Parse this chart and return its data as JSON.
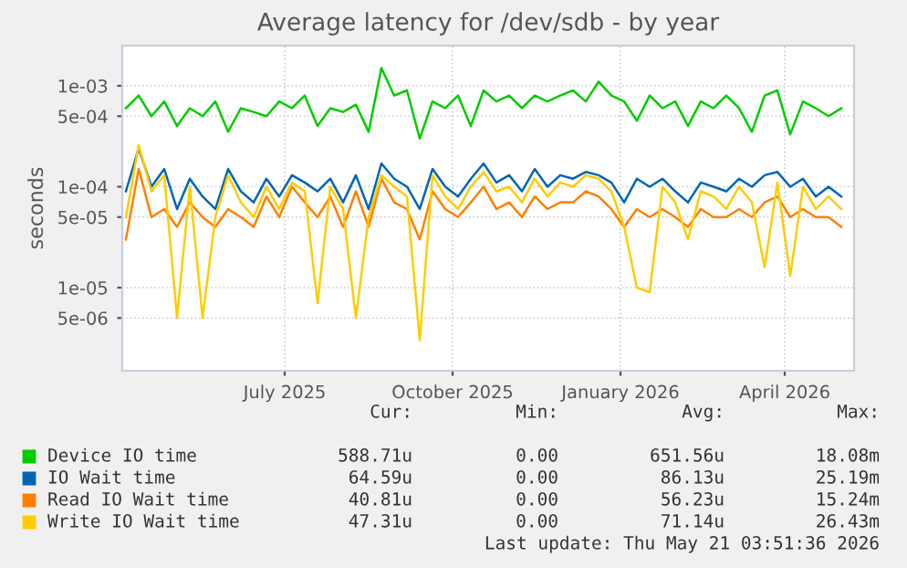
{
  "chart_data": {
    "type": "line",
    "title": "Average latency for /dev/sdb - by year",
    "ylabel": "seconds",
    "x": [
      "2025-04-20",
      "2025-04-27",
      "2025-05-04",
      "2025-05-11",
      "2025-05-18",
      "2025-05-25",
      "2025-06-01",
      "2025-06-08",
      "2025-06-15",
      "2025-06-22",
      "2025-06-29",
      "2025-07-06",
      "2025-07-13",
      "2025-07-20",
      "2025-07-27",
      "2025-08-03",
      "2025-08-10",
      "2025-08-17",
      "2025-08-24",
      "2025-08-31",
      "2025-09-07",
      "2025-09-14",
      "2025-09-21",
      "2025-09-28",
      "2025-10-05",
      "2025-10-12",
      "2025-10-19",
      "2025-10-26",
      "2025-11-02",
      "2025-11-09",
      "2025-11-16",
      "2025-11-23",
      "2025-11-30",
      "2025-12-07",
      "2025-12-14",
      "2025-12-21",
      "2025-12-28",
      "2026-01-04",
      "2026-01-11",
      "2026-01-18",
      "2026-01-25",
      "2026-02-01",
      "2026-02-08",
      "2026-02-15",
      "2026-02-22",
      "2026-03-01",
      "2026-03-08",
      "2026-03-15",
      "2026-03-22",
      "2026-03-29",
      "2026-04-05",
      "2026-04-12",
      "2026-04-19",
      "2026-04-26",
      "2026-05-03",
      "2026-05-10",
      "2026-05-17"
    ],
    "series": [
      {
        "name": "Device IO time",
        "color": "#00cc00",
        "values": [
          0.0006,
          0.0008,
          0.0005,
          0.0007,
          0.0004,
          0.0006,
          0.0005,
          0.0007,
          0.00035,
          0.0006,
          0.00055,
          0.0005,
          0.0007,
          0.0006,
          0.0008,
          0.0004,
          0.0006,
          0.00055,
          0.00065,
          0.00035,
          0.0015,
          0.0008,
          0.0009,
          0.0003,
          0.0007,
          0.0006,
          0.0008,
          0.0004,
          0.0009,
          0.0007,
          0.0008,
          0.0006,
          0.0008,
          0.0007,
          0.0008,
          0.0009,
          0.0007,
          0.0011,
          0.0008,
          0.0007,
          0.00045,
          0.0008,
          0.0006,
          0.0007,
          0.0004,
          0.0007,
          0.0006,
          0.0008,
          0.0006,
          0.00035,
          0.0008,
          0.0009,
          0.00033,
          0.0007,
          0.0006,
          0.0005,
          0.0006
        ]
      },
      {
        "name": "IO Wait time",
        "color": "#0066b3",
        "values": [
          9e-05,
          0.00024,
          0.0001,
          0.00015,
          6e-05,
          0.00012,
          8e-05,
          6e-05,
          0.00015,
          9e-05,
          7e-05,
          0.00012,
          8e-05,
          0.00013,
          0.00011,
          9e-05,
          0.00012,
          7e-05,
          0.00013,
          6e-05,
          0.00017,
          0.00012,
          0.0001,
          6e-05,
          0.00015,
          0.0001,
          8e-05,
          0.00012,
          0.00017,
          0.00011,
          0.00013,
          9e-05,
          0.00015,
          0.0001,
          0.00013,
          0.00012,
          0.00014,
          0.00013,
          0.00011,
          7e-05,
          0.00012,
          0.0001,
          0.00012,
          9e-05,
          7e-05,
          0.00011,
          0.0001,
          9e-05,
          0.00012,
          0.0001,
          0.00013,
          0.00014,
          0.0001,
          0.00012,
          8e-05,
          0.0001,
          8e-05
        ]
      },
      {
        "name": "Read IO Wait time",
        "color": "#ff8000",
        "values": [
          3e-05,
          0.00015,
          5e-05,
          6e-05,
          4e-05,
          7e-05,
          5e-05,
          4e-05,
          6e-05,
          5e-05,
          4e-05,
          8e-05,
          5e-05,
          0.0001,
          7e-05,
          5e-05,
          8e-05,
          4e-05,
          9e-05,
          4e-05,
          0.00012,
          7e-05,
          6e-05,
          3e-05,
          9e-05,
          6e-05,
          5e-05,
          7e-05,
          0.0001,
          6e-05,
          7e-05,
          5e-05,
          8e-05,
          6e-05,
          7e-05,
          7e-05,
          9e-05,
          8e-05,
          6e-05,
          4e-05,
          6e-05,
          5e-05,
          6e-05,
          5e-05,
          4e-05,
          6e-05,
          5e-05,
          5e-05,
          6e-05,
          5e-05,
          7e-05,
          8e-05,
          5e-05,
          6e-05,
          5e-05,
          5e-05,
          4e-05
        ]
      },
      {
        "name": "Write IO Wait time",
        "color": "#ffcc00",
        "values": [
          5e-05,
          0.00026,
          9e-05,
          0.00013,
          5e-06,
          0.0001,
          5e-06,
          5e-05,
          0.00013,
          7e-05,
          5e-05,
          0.0001,
          6e-05,
          0.00011,
          9e-05,
          7e-06,
          0.0001,
          6e-05,
          5e-06,
          5e-05,
          0.00013,
          0.0001,
          8e-05,
          3e-06,
          0.00013,
          8e-05,
          6e-05,
          0.0001,
          0.00014,
          9e-05,
          0.0001,
          7e-05,
          0.00012,
          8e-05,
          0.00011,
          0.0001,
          0.00013,
          0.00012,
          9e-05,
          4e-05,
          1e-05,
          9e-06,
          0.0001,
          7e-05,
          3e-05,
          9e-05,
          8e-05,
          6e-05,
          0.0001,
          7e-05,
          1.6e-05,
          0.00011,
          1.3e-05,
          0.0001,
          6e-05,
          8e-05,
          6e-05
        ]
      }
    ],
    "log": "y",
    "ylim": [
      1.5e-06,
      0.0025
    ],
    "yticks": [
      {
        "value": 5e-06,
        "label": "5e-06"
      },
      {
        "value": 1e-05,
        "label": "1e-05"
      },
      {
        "value": 5e-05,
        "label": "5e-05"
      },
      {
        "value": 0.0001,
        "label": "1e-04"
      },
      {
        "value": 0.0005,
        "label": "5e-04"
      },
      {
        "value": 0.001,
        "label": "1e-03"
      }
    ],
    "xlim": [
      "2025-04-18",
      "2026-05-24"
    ],
    "xticks": [
      {
        "value": "2025-07-16",
        "label": "July 2025"
      },
      {
        "value": "2025-10-16",
        "label": "October 2025"
      },
      {
        "value": "2026-01-16",
        "label": "January 2026"
      },
      {
        "value": "2026-04-16",
        "label": "April 2026"
      }
    ],
    "grid": true,
    "legend": "bottom left",
    "annotations": [
      "Cur:",
      "Min:",
      "Avg:",
      "Max:",
      "588.71u",
      "0.00",
      "651.56u",
      "18.08m",
      "64.59u",
      "0.00",
      "86.13u",
      "25.19m",
      "40.81u",
      "0.00",
      "56.23u",
      "15.24m",
      "47.31u",
      "0.00",
      "71.14u",
      "26.43m",
      "Last update: Thu May 21 03:51:36 2026"
    ]
  }
}
